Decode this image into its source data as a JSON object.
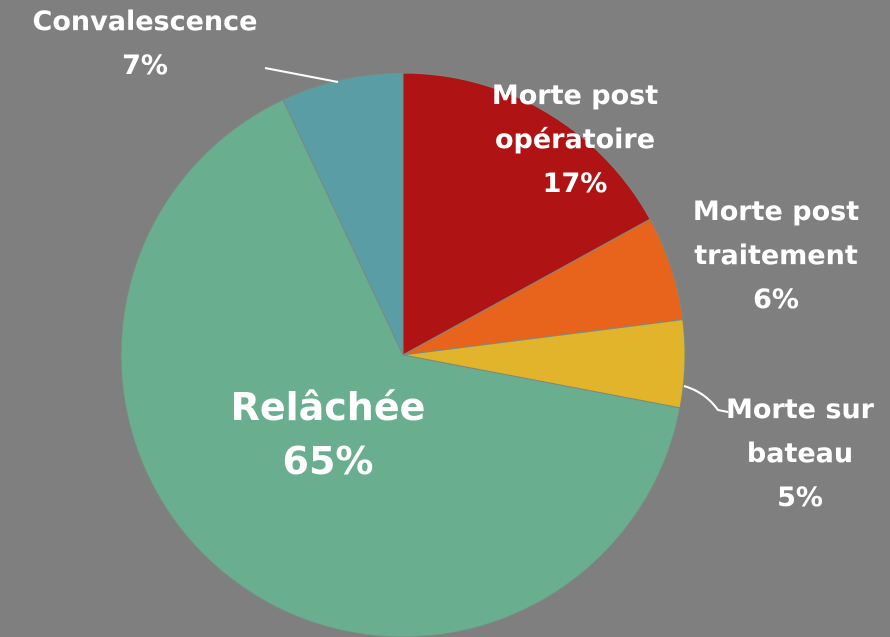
{
  "chart_data": {
    "type": "pie",
    "categories": [
      "Morte post opératoire",
      "Morte post traitement",
      "Morte sur bateau",
      "Relâchée",
      "Convalescence"
    ],
    "values": [
      17,
      6,
      5,
      65,
      7
    ],
    "value_labels": [
      "17%",
      "6%",
      "5%",
      "65%",
      "7%"
    ],
    "colors": [
      "#b01313",
      "#e8631b",
      "#e2b42b",
      "#69ae8e",
      "#5b9da5"
    ]
  }
}
